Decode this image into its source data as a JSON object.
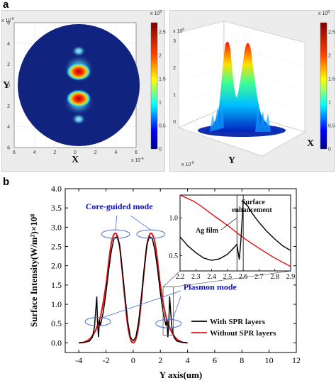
{
  "panel_a_label": "a",
  "panel_b_label": "b",
  "colors": {
    "field_background": "#10237f",
    "with_spr": "#000000",
    "without_spr": "#e01010",
    "annotation": "#1010c8",
    "ellipse": "#4a6fd8"
  },
  "top_left": {
    "exponent_top": "x 10",
    "exponent_top_power": "-6",
    "exponent_right": "x 10",
    "exponent_right_power": "-6",
    "xlabel": "X",
    "ylabel": "Y",
    "xticks": [
      "6",
      "4",
      "2",
      "0",
      "2",
      "4",
      "6"
    ],
    "yticks": [
      "6",
      "4",
      "2",
      "0",
      "2",
      "4",
      "6"
    ],
    "colorbar_exponent": "x 10",
    "colorbar_power": "8",
    "colorbar_ticks": [
      "0",
      "0.5",
      "1",
      "1.5",
      "2",
      "2.5"
    ]
  },
  "top_right": {
    "exponent_left": "x 10",
    "exponent_left_power": "8",
    "exponent_bottom": "x 10",
    "exponent_bottom_power": "-6",
    "xlabel": "X",
    "ylabel": "Y",
    "colorbar_exponent": "x 10",
    "colorbar_power": "8",
    "colorbar_ticks": [
      "0",
      "0.5",
      "1",
      "1.5",
      "2",
      "2.5"
    ]
  },
  "chart_data": {
    "type": "line",
    "title": "",
    "xlabel": "Y axis(um)",
    "ylabel": "Surface Intensity(W/m²)×10⁸",
    "xlim": [
      -5,
      12
    ],
    "ylim": [
      -0.25,
      4.0
    ],
    "xticks": [
      -4,
      -2,
      0,
      2,
      4,
      6,
      8,
      10,
      12
    ],
    "yticks": [
      0.0,
      0.5,
      1.0,
      1.5,
      2.0,
      2.5,
      3.0,
      3.5,
      4.0
    ],
    "legend_position": "bottom-right",
    "series": [
      {
        "name": "With SPR layers",
        "x": [
          -4.0,
          -3.6,
          -3.2,
          -3.0,
          -2.85,
          -2.75,
          -2.68,
          -2.62,
          -2.55,
          -2.48,
          -2.42,
          -2.35,
          -2.2,
          -2.0,
          -1.8,
          -1.6,
          -1.4,
          -1.2,
          -1.0,
          -0.8,
          -0.6,
          -0.4,
          -0.2,
          0.0,
          0.2,
          0.4,
          0.6,
          0.8,
          1.0,
          1.2,
          1.4,
          1.6,
          1.8,
          2.0,
          2.2,
          2.35,
          2.42,
          2.48,
          2.55,
          2.62,
          2.68,
          2.75,
          2.85,
          3.0,
          3.2,
          3.6,
          4.0
        ],
        "values": [
          0.0,
          0.01,
          0.05,
          0.15,
          0.4,
          0.85,
          1.2,
          0.5,
          0.15,
          0.6,
          0.45,
          0.55,
          0.8,
          1.3,
          1.9,
          2.4,
          2.72,
          2.75,
          2.55,
          1.9,
          1.2,
          0.55,
          0.15,
          0.05,
          0.15,
          0.55,
          1.2,
          1.9,
          2.55,
          2.75,
          2.72,
          2.4,
          1.9,
          1.3,
          0.8,
          0.55,
          0.45,
          0.6,
          0.15,
          0.5,
          1.2,
          0.85,
          0.4,
          0.15,
          0.05,
          0.01,
          0.0
        ]
      },
      {
        "name": "Without SPR layers",
        "x": [
          -4.0,
          -3.6,
          -3.2,
          -2.8,
          -2.4,
          -2.0,
          -1.8,
          -1.6,
          -1.4,
          -1.2,
          -1.0,
          -0.8,
          -0.6,
          -0.4,
          -0.2,
          0.0,
          0.2,
          0.4,
          0.6,
          0.8,
          1.0,
          1.2,
          1.4,
          1.6,
          1.8,
          2.0,
          2.4,
          2.8,
          3.2,
          3.6,
          4.0
        ],
        "values": [
          0.0,
          0.02,
          0.1,
          0.3,
          0.7,
          1.5,
          2.1,
          2.6,
          2.82,
          2.8,
          2.5,
          1.85,
          1.1,
          0.45,
          0.1,
          0.0,
          0.1,
          0.45,
          1.1,
          1.85,
          2.5,
          2.8,
          2.82,
          2.6,
          2.1,
          1.5,
          0.7,
          0.3,
          0.1,
          0.02,
          0.0
        ]
      }
    ],
    "annotations": {
      "core_guided": "Core-guided mode",
      "plasmon": "Plasmon mode",
      "surface_line1": "Surface",
      "surface_line2": "enhancement",
      "ag_film": "Ag film"
    },
    "inset": {
      "xlim": [
        2.2,
        2.9
      ],
      "ylim": [
        0.3,
        1.3
      ],
      "xticks": [
        2.2,
        2.3,
        2.4,
        2.5,
        2.6,
        2.7,
        2.8,
        2.9
      ],
      "yticks": [
        0.5,
        1.0
      ],
      "with_spr": {
        "x": [
          2.2,
          2.25,
          2.3,
          2.35,
          2.4,
          2.45,
          2.5,
          2.53,
          2.56,
          2.575,
          2.585,
          2.6,
          2.63,
          2.66,
          2.7,
          2.75,
          2.8,
          2.85,
          2.9
        ],
        "values": [
          0.75,
          0.63,
          0.54,
          0.47,
          0.44,
          0.46,
          0.52,
          0.58,
          0.65,
          0.45,
          0.7,
          1.22,
          1.15,
          1.05,
          0.94,
          0.82,
          0.72,
          0.63,
          0.57
        ]
      },
      "without_spr": {
        "x": [
          2.2,
          2.3,
          2.4,
          2.5,
          2.6,
          2.7,
          2.8,
          2.9
        ],
        "values": [
          1.3,
          1.2,
          1.05,
          0.9,
          0.74,
          0.6,
          0.47,
          0.36
        ]
      },
      "vlines": [
        2.56,
        2.6
      ]
    }
  }
}
